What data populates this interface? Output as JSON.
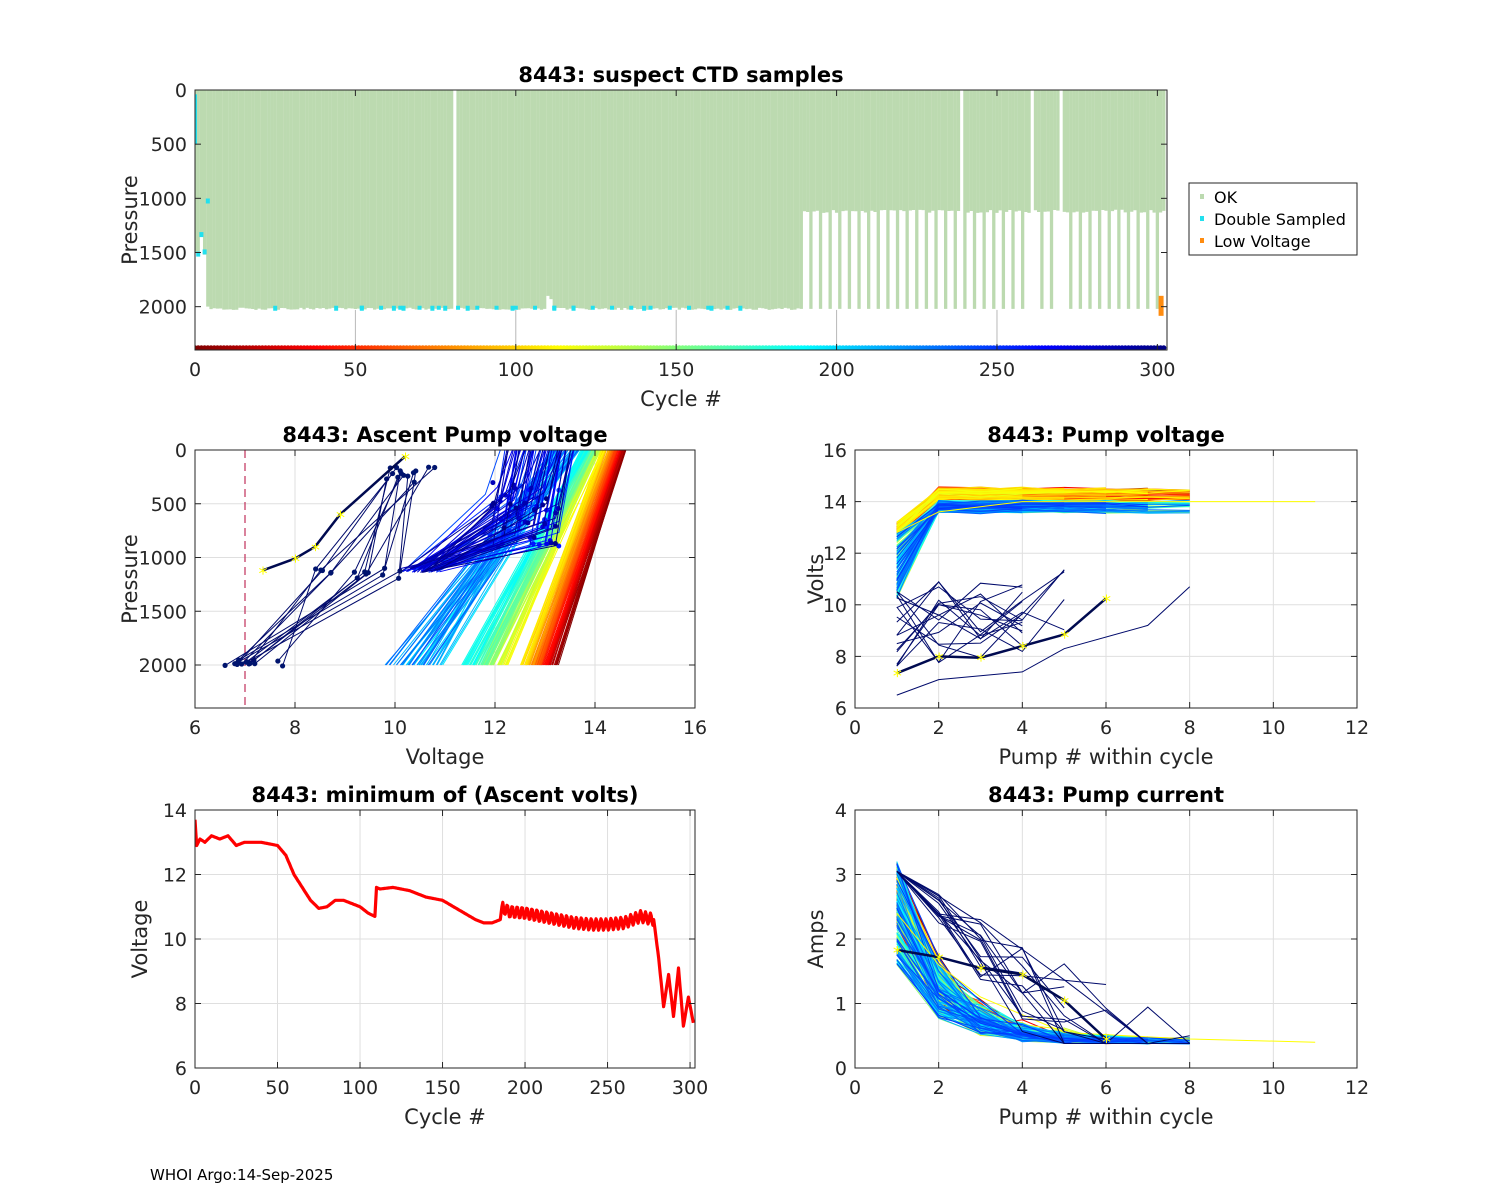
{
  "footer": "WHOI Argo:14-Sep-2025",
  "colors": {
    "ok": "#bcdab0",
    "double_sampled": "#22e0ee",
    "low_voltage": "#ff8c10",
    "limit_line": "#c0305a",
    "min_volts_line": "#ff0000",
    "highlight": "#ffff00"
  },
  "chart_data": [
    {
      "id": "ctd",
      "type": "scatter",
      "title": "8443: suspect CTD samples",
      "xlabel": "Cycle #",
      "ylabel": "Pressure",
      "xlim": [
        0,
        303
      ],
      "ylim": [
        2400,
        0
      ],
      "xticks": [
        0,
        50,
        100,
        150,
        200,
        250,
        300
      ],
      "yticks": [
        0,
        500,
        1000,
        1500,
        2000
      ],
      "legend": {
        "placement": "outside-right",
        "entries": [
          "OK",
          "Double Sampled",
          "Low Voltage"
        ]
      },
      "profile_depth_segments": [
        {
          "cycles": [
            5,
            188
          ],
          "max_pressure": 2020
        },
        {
          "cycles": [
            189,
            302
          ],
          "alternating_pressures": [
            1120,
            2020
          ],
          "period_cycles": 3
        }
      ],
      "missing_cycles": [
        81,
        239,
        261,
        270
      ],
      "double_sampled_cycles": [
        1,
        2,
        3,
        4,
        25,
        44,
        52,
        62,
        65,
        74,
        78,
        85,
        99,
        112,
        118,
        140,
        161,
        170
      ],
      "low_voltage_cycles": [
        301
      ],
      "cycle_color_bar_y": 2380
    },
    {
      "id": "ascent",
      "type": "line",
      "title": "8443: Ascent Pump voltage",
      "xlabel": "Voltage",
      "ylabel": "Pressure",
      "xlim": [
        6,
        16
      ],
      "ylim": [
        2400,
        0
      ],
      "xticks": [
        6,
        8,
        10,
        12,
        14,
        16
      ],
      "yticks": [
        0,
        500,
        1000,
        1500,
        2000
      ],
      "limit_voltage": 7,
      "series_summary": "one line per cycle, coloured by cycle number (early = red, late = dark blue)",
      "bottom_voltage_range": [
        9.6,
        13.3
      ],
      "surface_voltage_range": [
        10.2,
        14.6
      ],
      "late_cycle_voltages": [
        6.6,
        7.5,
        8.1,
        9.0,
        10.7
      ]
    },
    {
      "id": "pumpv",
      "type": "line",
      "title": "8443: Pump voltage",
      "xlabel": "Pump # within cycle",
      "ylabel": "Volts",
      "xlim": [
        0,
        12
      ],
      "ylim": [
        6,
        16
      ],
      "xticks": [
        0,
        2,
        4,
        6,
        8,
        10,
        12
      ],
      "yticks": [
        6,
        8,
        10,
        12,
        14,
        16
      ],
      "series_summary": "one line per cycle, coloured by cycle number",
      "highlight_series": {
        "x": [
          1,
          2,
          3,
          4,
          5,
          6
        ],
        "y": [
          7.35,
          8.0,
          7.95,
          8.4,
          8.85,
          10.25
        ]
      },
      "longest_series": {
        "x": [
          1,
          2,
          4,
          8,
          11
        ],
        "y": [
          12.8,
          13.6,
          14.0,
          14.0,
          14.0
        ]
      }
    },
    {
      "id": "minv",
      "type": "line",
      "title": "8443: minimum of (Ascent volts)",
      "xlabel": "Cycle #",
      "ylabel": "Voltage",
      "xlim": [
        0,
        303
      ],
      "ylim": [
        6,
        14
      ],
      "xticks": [
        0,
        50,
        100,
        150,
        200,
        250,
        300
      ],
      "yticks": [
        6,
        8,
        10,
        12,
        14
      ],
      "x": [
        0,
        1,
        3,
        6,
        10,
        15,
        20,
        25,
        30,
        35,
        40,
        45,
        50,
        55,
        60,
        65,
        70,
        75,
        80,
        85,
        90,
        95,
        100,
        105,
        109,
        110,
        112,
        120,
        130,
        140,
        150,
        160,
        170,
        175,
        180,
        185,
        186,
        190,
        200,
        210,
        220,
        230,
        240,
        250,
        260,
        270,
        278,
        281,
        284,
        287,
        290,
        293,
        296,
        299,
        302
      ],
      "y": [
        13.7,
        12.9,
        13.1,
        13.0,
        13.2,
        13.1,
        13.2,
        12.9,
        13.0,
        13.0,
        13.0,
        12.95,
        12.9,
        12.6,
        12.0,
        11.6,
        11.2,
        10.95,
        11.0,
        11.2,
        11.2,
        11.1,
        11.0,
        10.8,
        10.7,
        11.6,
        11.55,
        11.6,
        11.5,
        11.3,
        11.2,
        10.9,
        10.6,
        10.5,
        10.5,
        10.6,
        11.0,
        10.85,
        10.8,
        10.7,
        10.6,
        10.5,
        10.45,
        10.45,
        10.5,
        10.7,
        10.6,
        9.4,
        7.9,
        8.9,
        7.6,
        9.1,
        7.3,
        8.2,
        7.4
      ]
    },
    {
      "id": "pumpc",
      "type": "line",
      "title": "8443: Pump current",
      "xlabel": "Pump # within cycle",
      "ylabel": "Amps",
      "xlim": [
        0,
        12
      ],
      "ylim": [
        0,
        4
      ],
      "xticks": [
        0,
        2,
        4,
        6,
        8,
        10,
        12
      ],
      "yticks": [
        0,
        1,
        2,
        3,
        4
      ],
      "series_summary": "one line per cycle, coloured by cycle number",
      "highlight_series": {
        "x": [
          1,
          2,
          3,
          4,
          5,
          6
        ],
        "y": [
          1.83,
          1.72,
          1.55,
          1.45,
          1.05,
          0.45
        ]
      },
      "longest_series": {
        "x": [
          1,
          2,
          3,
          5,
          8,
          11
        ],
        "y": [
          2.4,
          1.6,
          1.1,
          0.55,
          0.45,
          0.4
        ]
      }
    }
  ]
}
